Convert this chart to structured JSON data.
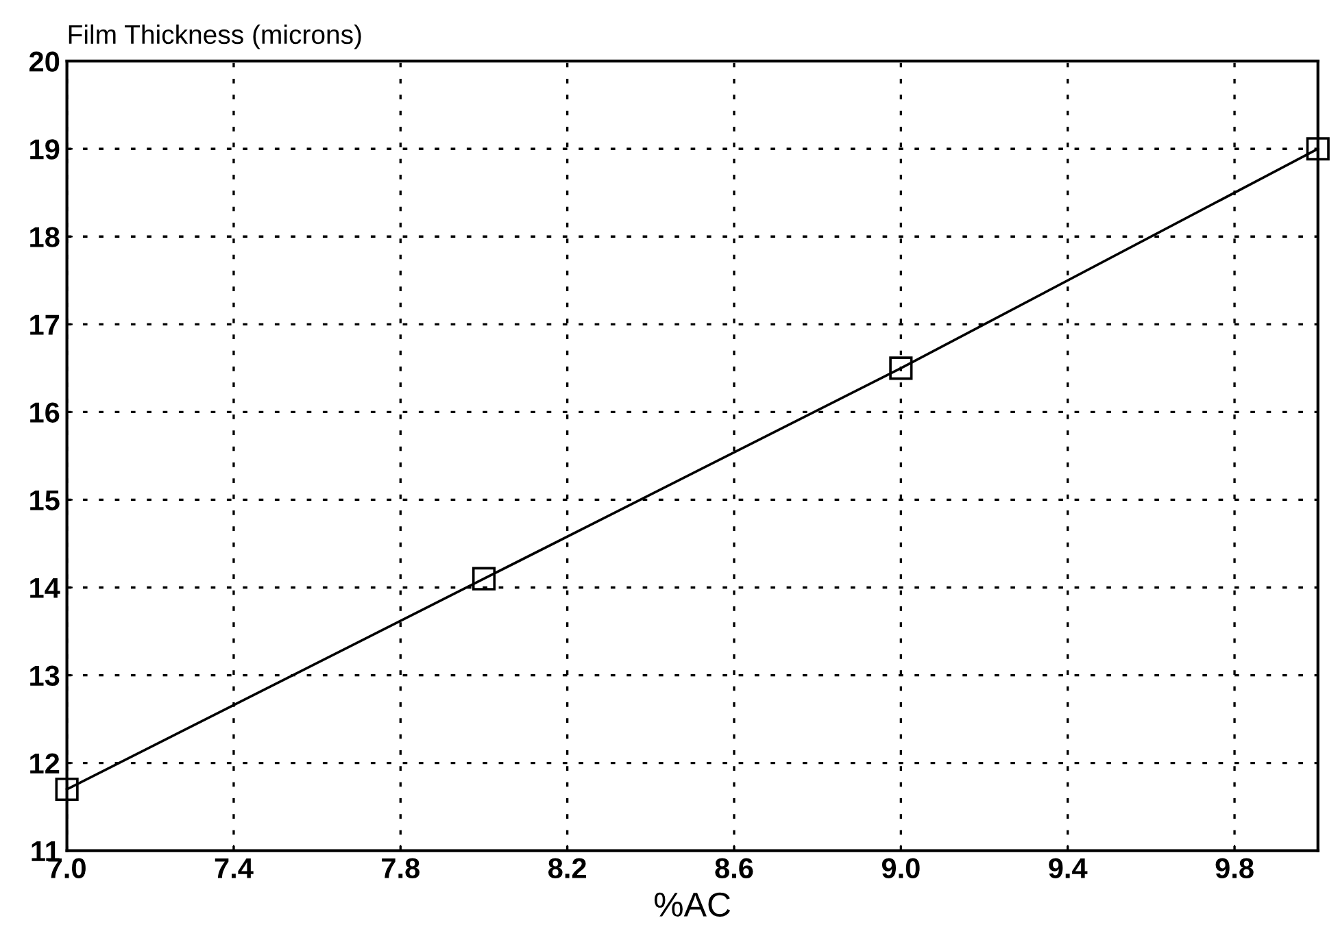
{
  "chart_data": {
    "type": "line",
    "ylabel": "Film Thickness (microns)",
    "xlabel": "%AC",
    "x": [
      7.0,
      8.0,
      9.0,
      10.0
    ],
    "series": [
      {
        "color": "#000000",
        "values": [
          11.7,
          14.1,
          16.5,
          19.0
        ]
      }
    ],
    "xlim": [
      7.0,
      10.0
    ],
    "xticks": [
      {
        "value": 7.0,
        "label": "7.0"
      },
      7.4,
      7.8,
      8.2,
      8.6,
      {
        "value": 9.0,
        "label": "9.0"
      },
      9.4,
      9.8
    ],
    "ylim": [
      11,
      20
    ],
    "yticks": [
      11,
      12,
      13,
      14,
      15,
      16,
      17,
      18,
      19,
      20
    ],
    "grid": true,
    "marker": "square",
    "line_style": "solid"
  }
}
